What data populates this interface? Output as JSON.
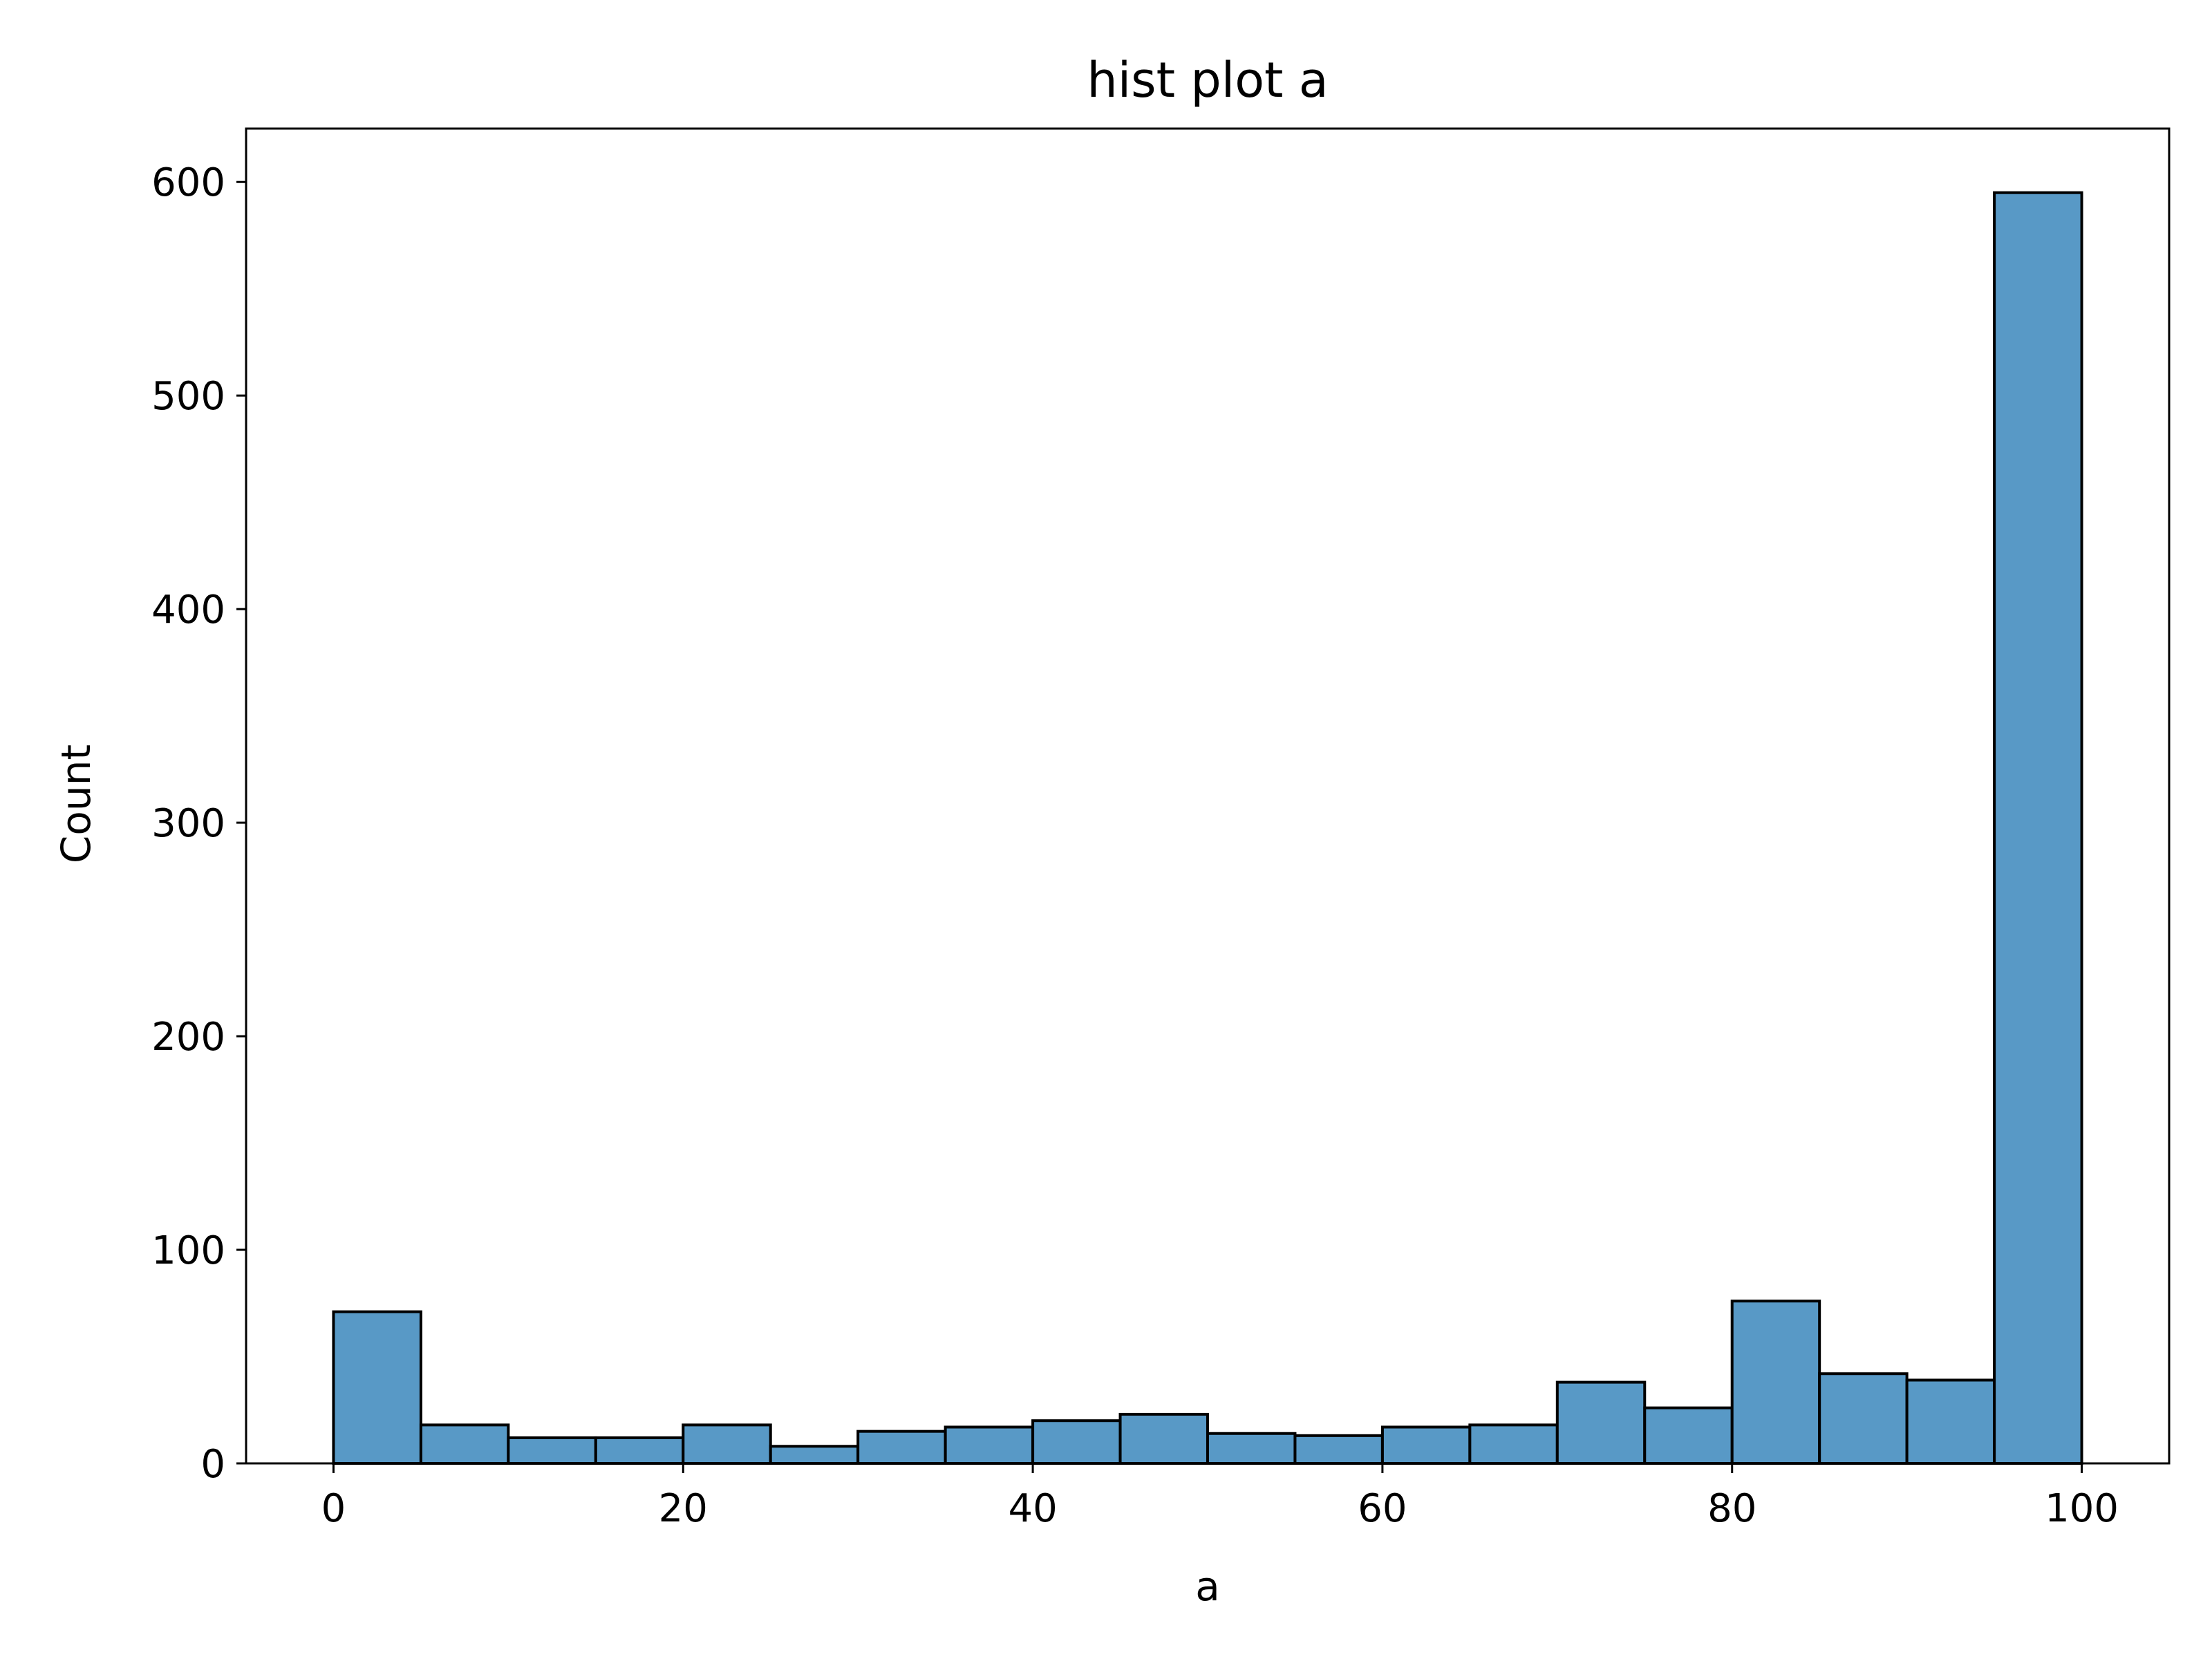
{
  "chart_data": {
    "type": "bar",
    "title": "hist plot a",
    "xlabel": "a",
    "ylabel": "Count",
    "bin_width": 5,
    "bins": [
      {
        "x0": 0,
        "x1": 5,
        "count": 71
      },
      {
        "x0": 5,
        "x1": 10,
        "count": 18
      },
      {
        "x0": 10,
        "x1": 15,
        "count": 12
      },
      {
        "x0": 15,
        "x1": 20,
        "count": 12
      },
      {
        "x0": 20,
        "x1": 25,
        "count": 18
      },
      {
        "x0": 25,
        "x1": 30,
        "count": 8
      },
      {
        "x0": 30,
        "x1": 35,
        "count": 15
      },
      {
        "x0": 35,
        "x1": 40,
        "count": 17
      },
      {
        "x0": 40,
        "x1": 45,
        "count": 20
      },
      {
        "x0": 45,
        "x1": 50,
        "count": 23
      },
      {
        "x0": 50,
        "x1": 55,
        "count": 14
      },
      {
        "x0": 55,
        "x1": 60,
        "count": 13
      },
      {
        "x0": 60,
        "x1": 65,
        "count": 17
      },
      {
        "x0": 65,
        "x1": 70,
        "count": 18
      },
      {
        "x0": 70,
        "x1": 75,
        "count": 38
      },
      {
        "x0": 75,
        "x1": 80,
        "count": 26
      },
      {
        "x0": 80,
        "x1": 85,
        "count": 76
      },
      {
        "x0": 85,
        "x1": 90,
        "count": 42
      },
      {
        "x0": 90,
        "x1": 95,
        "count": 39
      },
      {
        "x0": 95,
        "x1": 100,
        "count": 595
      }
    ],
    "xlim": [
      -5,
      105
    ],
    "ylim": [
      0,
      625
    ],
    "x_ticks": [
      0,
      20,
      40,
      60,
      80,
      100
    ],
    "x_tick_labels": [
      "0",
      "20",
      "40",
      "60",
      "80",
      "100"
    ],
    "y_ticks": [
      0,
      100,
      200,
      300,
      400,
      500,
      600
    ],
    "y_tick_labels": [
      "0",
      "100",
      "200",
      "300",
      "400",
      "500",
      "600"
    ],
    "grid": false,
    "legend": "none",
    "colors": {
      "bar_fill": "#5899C6",
      "bar_edge": "#000000",
      "axes": "#000000",
      "background": "#ffffff"
    }
  }
}
